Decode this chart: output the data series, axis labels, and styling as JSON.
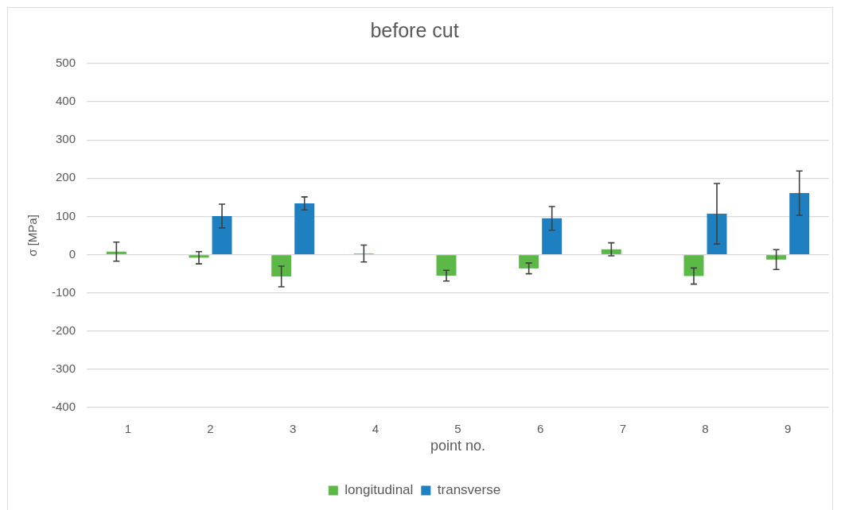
{
  "chart_data": {
    "type": "bar",
    "title": "before cut",
    "xlabel": "point no.",
    "ylabel": "σ [MPa]",
    "categories": [
      "1",
      "2",
      "3",
      "4",
      "5",
      "6",
      "7",
      "8",
      "9"
    ],
    "series": [
      {
        "name": "longitudinal",
        "color": "#5cb947",
        "values": [
          8,
          -8,
          -57,
          3,
          -55,
          -36,
          14,
          -56,
          -13
        ],
        "errors": [
          25,
          16,
          27,
          22,
          14,
          14,
          17,
          21,
          26
        ]
      },
      {
        "name": "transverse",
        "color": "#1e80c1",
        "values": [
          null,
          101,
          134,
          null,
          null,
          95,
          null,
          107,
          161
        ],
        "errors": [
          null,
          31,
          17,
          null,
          null,
          31,
          null,
          79,
          58
        ]
      }
    ],
    "ylim": [
      -400,
      500
    ],
    "yticks": [
      -400,
      -300,
      -200,
      -100,
      0,
      100,
      200,
      300,
      400,
      500
    ],
    "grid": "y",
    "legend": "bottom"
  }
}
